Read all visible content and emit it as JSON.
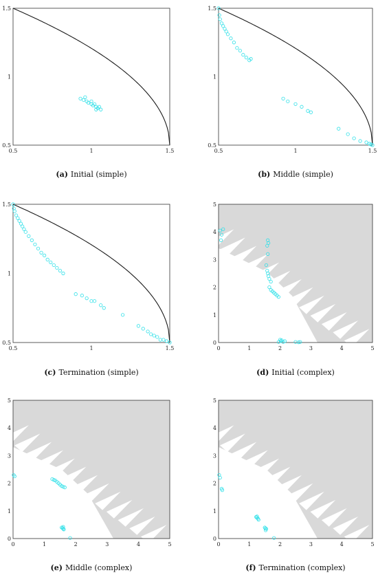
{
  "colors": {
    "marker": "#2fe0e8",
    "curve": "#1a1a1a",
    "infeasible": "#d9d9d9"
  },
  "chart_data": [
    {
      "id": "a",
      "type": "scatter",
      "marker": "open-circle",
      "caption_letter": "(a)",
      "caption_text": "Initial (simple)",
      "xlim": [
        0.5,
        1.5
      ],
      "ylim": [
        0.5,
        1.5
      ],
      "xticks": [
        "0.5",
        "1",
        "1.5"
      ],
      "yticks": [
        "0.5",
        "1",
        "1.5"
      ],
      "reference": "pareto-front",
      "points": [
        [
          0.93,
          0.84
        ],
        [
          0.95,
          0.83
        ],
        [
          0.97,
          0.82
        ],
        [
          0.98,
          0.81
        ],
        [
          1.0,
          0.8
        ],
        [
          1.01,
          0.79
        ],
        [
          1.02,
          0.8
        ],
        [
          1.03,
          0.78
        ],
        [
          1.04,
          0.77
        ],
        [
          1.05,
          0.78
        ],
        [
          1.06,
          0.76
        ],
        [
          1.0,
          0.82
        ],
        [
          0.96,
          0.85
        ],
        [
          1.03,
          0.76
        ]
      ]
    },
    {
      "id": "b",
      "type": "scatter",
      "marker": "open-circle",
      "caption_letter": "(b)",
      "caption_text": "Middle (simple)",
      "xlim": [
        0.5,
        1.5
      ],
      "ylim": [
        0.5,
        1.5
      ],
      "xticks": [
        "0.5",
        "1",
        "1.5"
      ],
      "yticks": [
        "0.5",
        "1",
        "1.5"
      ],
      "reference": "pareto-front",
      "points": [
        [
          0.5,
          1.5
        ],
        [
          0.505,
          1.45
        ],
        [
          0.51,
          1.42
        ],
        [
          0.52,
          1.39
        ],
        [
          0.53,
          1.37
        ],
        [
          0.54,
          1.35
        ],
        [
          0.55,
          1.33
        ],
        [
          0.56,
          1.31
        ],
        [
          0.58,
          1.28
        ],
        [
          0.6,
          1.25
        ],
        [
          0.62,
          1.21
        ],
        [
          0.64,
          1.19
        ],
        [
          0.66,
          1.16
        ],
        [
          0.68,
          1.14
        ],
        [
          0.7,
          1.12
        ],
        [
          0.71,
          1.13
        ],
        [
          0.92,
          0.84
        ],
        [
          0.95,
          0.82
        ],
        [
          1.0,
          0.8
        ],
        [
          1.04,
          0.78
        ],
        [
          1.08,
          0.75
        ],
        [
          1.1,
          0.74
        ],
        [
          1.28,
          0.62
        ],
        [
          1.34,
          0.58
        ],
        [
          1.38,
          0.55
        ],
        [
          1.42,
          0.53
        ],
        [
          1.46,
          0.52
        ],
        [
          1.48,
          0.51
        ],
        [
          1.5,
          0.5
        ],
        [
          1.49,
          0.505
        ]
      ]
    },
    {
      "id": "c",
      "type": "scatter",
      "marker": "open-circle",
      "caption_letter": "(c)",
      "caption_text": "Termination (simple)",
      "xlim": [
        0.5,
        1.5
      ],
      "ylim": [
        0.5,
        1.5
      ],
      "xticks": [
        "0.5",
        "1",
        "1.5"
      ],
      "yticks": [
        "0.5",
        "1",
        "1.5"
      ],
      "reference": "pareto-front",
      "points": [
        [
          0.5,
          1.5
        ],
        [
          0.505,
          1.47
        ],
        [
          0.51,
          1.45
        ],
        [
          0.52,
          1.42
        ],
        [
          0.53,
          1.4
        ],
        [
          0.54,
          1.38
        ],
        [
          0.55,
          1.36
        ],
        [
          0.56,
          1.34
        ],
        [
          0.57,
          1.32
        ],
        [
          0.58,
          1.3
        ],
        [
          0.6,
          1.27
        ],
        [
          0.62,
          1.24
        ],
        [
          0.64,
          1.21
        ],
        [
          0.66,
          1.18
        ],
        [
          0.68,
          1.15
        ],
        [
          0.7,
          1.13
        ],
        [
          0.72,
          1.1
        ],
        [
          0.74,
          1.08
        ],
        [
          0.76,
          1.06
        ],
        [
          0.78,
          1.04
        ],
        [
          0.8,
          1.02
        ],
        [
          0.82,
          1.0
        ],
        [
          0.9,
          0.85
        ],
        [
          0.94,
          0.84
        ],
        [
          0.97,
          0.82
        ],
        [
          1.0,
          0.8
        ],
        [
          1.02,
          0.8
        ],
        [
          1.06,
          0.77
        ],
        [
          1.08,
          0.75
        ],
        [
          1.2,
          0.7
        ],
        [
          1.3,
          0.62
        ],
        [
          1.33,
          0.6
        ],
        [
          1.36,
          0.58
        ],
        [
          1.38,
          0.56
        ],
        [
          1.4,
          0.55
        ],
        [
          1.42,
          0.54
        ],
        [
          1.44,
          0.52
        ],
        [
          1.46,
          0.52
        ],
        [
          1.48,
          0.51
        ],
        [
          1.5,
          0.5
        ]
      ]
    },
    {
      "id": "d",
      "type": "scatter",
      "marker": "open-circle",
      "caption_letter": "(d)",
      "caption_text": "Initial (complex)",
      "xlim": [
        0,
        5
      ],
      "ylim": [
        0,
        5
      ],
      "xticks": [
        "0",
        "1",
        "2",
        "3",
        "4",
        "5"
      ],
      "yticks": [
        "0",
        "1",
        "2",
        "3",
        "4",
        "5"
      ],
      "reference": "feasible-region",
      "points": [
        [
          0.05,
          4.05
        ],
        [
          0.1,
          3.9
        ],
        [
          0.15,
          4.1
        ],
        [
          0.08,
          3.7
        ],
        [
          1.6,
          3.7
        ],
        [
          1.62,
          3.6
        ],
        [
          1.58,
          3.5
        ],
        [
          1.6,
          3.2
        ],
        [
          1.55,
          2.8
        ],
        [
          1.58,
          2.6
        ],
        [
          1.6,
          2.5
        ],
        [
          1.62,
          2.4
        ],
        [
          1.65,
          2.3
        ],
        [
          1.7,
          2.2
        ],
        [
          1.65,
          2.0
        ],
        [
          1.7,
          1.9
        ],
        [
          1.75,
          1.85
        ],
        [
          1.8,
          1.8
        ],
        [
          1.85,
          1.75
        ],
        [
          1.9,
          1.7
        ],
        [
          1.95,
          1.65
        ],
        [
          2.0,
          0.1
        ],
        [
          2.02,
          0.05
        ],
        [
          2.05,
          0.08
        ],
        [
          2.1,
          0.02
        ],
        [
          2.15,
          0.05
        ],
        [
          2.5,
          0.02
        ],
        [
          2.6,
          0.01
        ],
        [
          2.65,
          0.02
        ],
        [
          1.95,
          0.02
        ]
      ]
    },
    {
      "id": "e",
      "type": "scatter",
      "marker": "open-circle",
      "caption_letter": "(e)",
      "caption_text": "Middle (complex)",
      "xlim": [
        0,
        5
      ],
      "ylim": [
        0,
        5
      ],
      "xticks": [
        "0",
        "1",
        "2",
        "3",
        "4",
        "5"
      ],
      "yticks": [
        "0",
        "1",
        "2",
        "3",
        "4",
        "5"
      ],
      "reference": "feasible-region",
      "points": [
        [
          0.02,
          2.3
        ],
        [
          0.05,
          2.25
        ],
        [
          1.25,
          2.15
        ],
        [
          1.3,
          2.12
        ],
        [
          1.35,
          2.1
        ],
        [
          1.4,
          2.05
        ],
        [
          1.45,
          2.0
        ],
        [
          1.5,
          1.95
        ],
        [
          1.55,
          1.9
        ],
        [
          1.6,
          1.87
        ],
        [
          1.65,
          1.85
        ],
        [
          1.55,
          0.4
        ],
        [
          1.58,
          0.38
        ],
        [
          1.6,
          0.35
        ],
        [
          1.62,
          0.33
        ],
        [
          1.6,
          0.42
        ],
        [
          1.82,
          0.02
        ]
      ]
    },
    {
      "id": "f",
      "type": "scatter",
      "marker": "open-circle",
      "caption_letter": "(f)",
      "caption_text": "Termination (complex)",
      "xlim": [
        0,
        5
      ],
      "ylim": [
        0,
        5
      ],
      "xticks": [
        "0",
        "1",
        "2",
        "3",
        "4",
        "5"
      ],
      "yticks": [
        "0",
        "1",
        "2",
        "3",
        "4",
        "5"
      ],
      "reference": "feasible-region",
      "points": [
        [
          0.02,
          2.3
        ],
        [
          0.05,
          2.2
        ],
        [
          0.1,
          1.8
        ],
        [
          0.12,
          1.75
        ],
        [
          1.22,
          0.78
        ],
        [
          1.25,
          0.75
        ],
        [
          1.28,
          0.72
        ],
        [
          1.3,
          0.68
        ],
        [
          1.25,
          0.8
        ],
        [
          1.5,
          0.4
        ],
        [
          1.52,
          0.37
        ],
        [
          1.55,
          0.35
        ],
        [
          1.53,
          0.3
        ],
        [
          1.8,
          0.02
        ]
      ]
    }
  ]
}
